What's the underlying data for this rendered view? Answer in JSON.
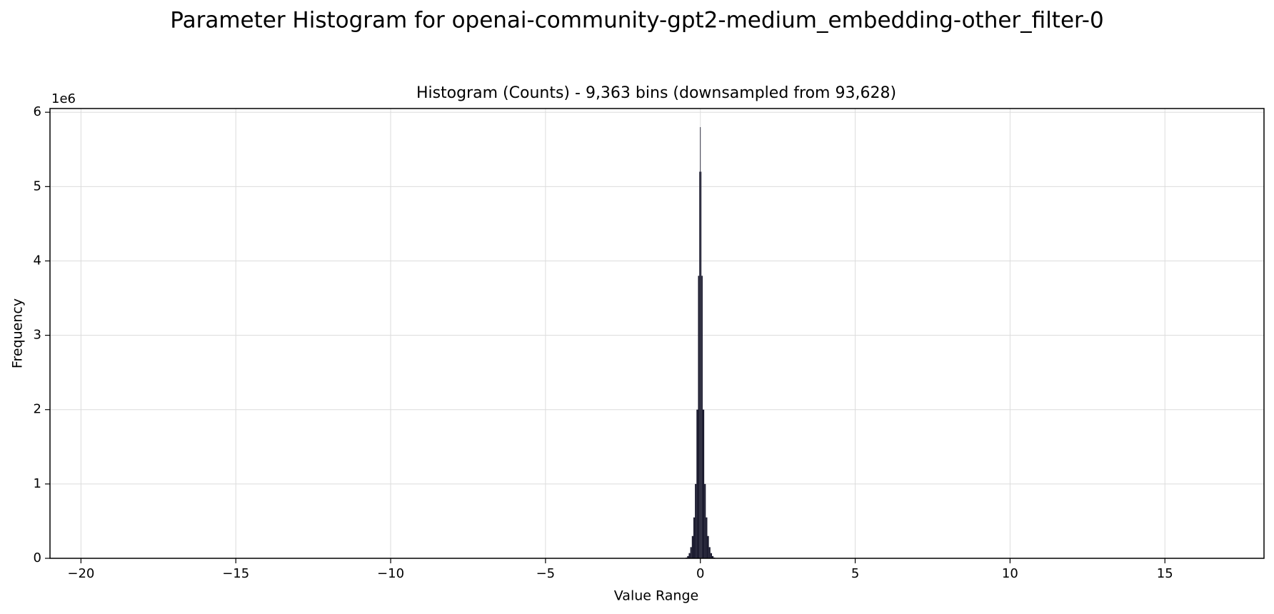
{
  "figure": {
    "suptitle": "Parameter Histogram for openai-community-gpt2-medium_embedding-other_filter-0"
  },
  "chart_data": {
    "type": "bar",
    "title": "Histogram (Counts) - 9,363 bins (downsampled from 93,628)",
    "xlabel": "Value Range",
    "ylabel": "Frequency",
    "y_offset_text": "1e6",
    "y_scale_multiplier": 1000000,
    "xlim": [
      -21.0,
      18.2
    ],
    "ylim": [
      0,
      6.05
    ],
    "xticks": [
      -20,
      -15,
      -10,
      -5,
      0,
      5,
      10,
      15
    ],
    "xtick_labels": [
      "−20",
      "−15",
      "−10",
      "−5",
      "0",
      "5",
      "10",
      "15"
    ],
    "yticks": [
      0,
      1,
      2,
      3,
      4,
      5,
      6
    ],
    "ytick_labels": [
      "0",
      "1",
      "2",
      "3",
      "4",
      "5",
      "6"
    ],
    "grid": true,
    "bar_color": "#1a1a2e",
    "series": [
      {
        "x": [
          -0.45,
          -0.4,
          -0.35,
          -0.3,
          -0.25,
          -0.2,
          -0.15,
          -0.1,
          -0.05,
          -0.02,
          0.0,
          0.02,
          0.05,
          0.1,
          0.15,
          0.2,
          0.25,
          0.3,
          0.35,
          0.4,
          0.45
        ],
        "values": [
          0.01,
          0.03,
          0.07,
          0.15,
          0.3,
          0.55,
          1.0,
          2.0,
          3.8,
          5.2,
          5.8,
          5.2,
          3.8,
          2.0,
          1.0,
          0.55,
          0.3,
          0.15,
          0.07,
          0.03,
          0.01
        ]
      }
    ]
  }
}
